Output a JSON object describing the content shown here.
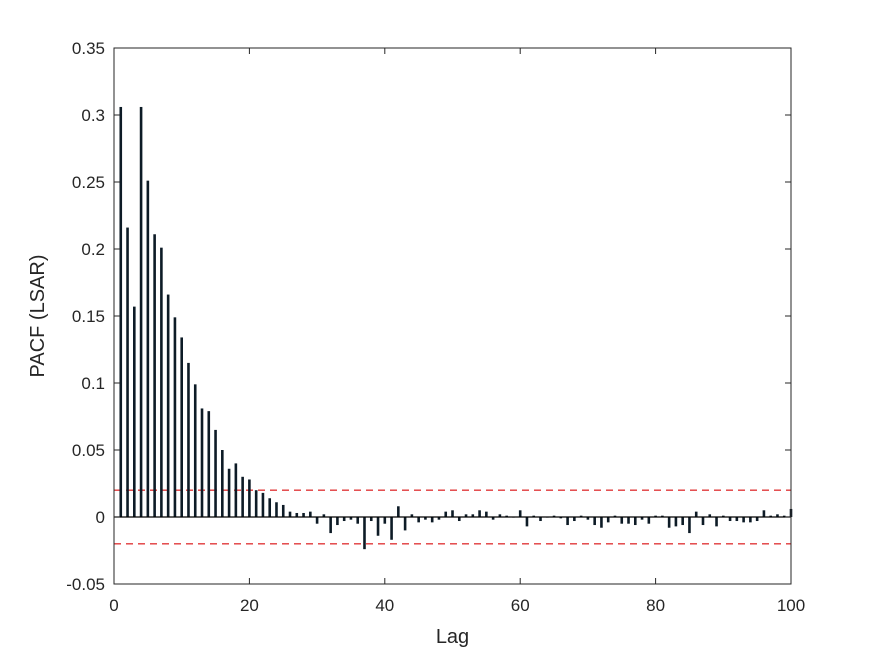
{
  "chart_data": {
    "type": "bar",
    "xlabel": "Lag",
    "ylabel": "PACF (LSAR)",
    "xlim": [
      0,
      100
    ],
    "ylim": [
      -0.05,
      0.35
    ],
    "xticks": [
      0,
      20,
      40,
      60,
      80,
      100
    ],
    "xtick_labels": [
      "0",
      "20",
      "40",
      "60",
      "80",
      "100"
    ],
    "yticks": [
      -0.05,
      0,
      0.05,
      0.1,
      0.15,
      0.2,
      0.25,
      0.3,
      0.35
    ],
    "ytick_labels": [
      "-0.05",
      "0",
      "0.05",
      "0.1",
      "0.15",
      "0.2",
      "0.25",
      "0.3",
      "0.35"
    ],
    "grid": false,
    "confidence_bounds": [
      0.02,
      -0.02
    ],
    "colors": {
      "bars": "#0d1b26",
      "bounds": "#e0383a",
      "axes": "#262626"
    },
    "lags": [
      1,
      2,
      3,
      4,
      5,
      6,
      7,
      8,
      9,
      10,
      11,
      12,
      13,
      14,
      15,
      16,
      17,
      18,
      19,
      20,
      21,
      22,
      23,
      24,
      25,
      26,
      27,
      28,
      29,
      30,
      31,
      32,
      33,
      34,
      35,
      36,
      37,
      38,
      39,
      40,
      41,
      42,
      43,
      44,
      45,
      46,
      47,
      48,
      49,
      50,
      51,
      52,
      53,
      54,
      55,
      56,
      57,
      58,
      59,
      60,
      61,
      62,
      63,
      64,
      65,
      66,
      67,
      68,
      69,
      70,
      71,
      72,
      73,
      74,
      75,
      76,
      77,
      78,
      79,
      80,
      81,
      82,
      83,
      84,
      85,
      86,
      87,
      88,
      89,
      90,
      91,
      92,
      93,
      94,
      95,
      96,
      97,
      98,
      99,
      100
    ],
    "values": [
      0.306,
      0.216,
      0.157,
      0.306,
      0.251,
      0.211,
      0.201,
      0.166,
      0.149,
      0.134,
      0.115,
      0.099,
      0.081,
      0.079,
      0.065,
      0.05,
      0.036,
      0.04,
      0.03,
      0.028,
      0.02,
      0.018,
      0.014,
      0.011,
      0.009,
      0.004,
      0.003,
      0.003,
      0.004,
      -0.005,
      0.002,
      -0.012,
      -0.006,
      -0.003,
      -0.002,
      -0.005,
      -0.024,
      -0.003,
      -0.014,
      -0.005,
      -0.017,
      0.008,
      -0.01,
      0.002,
      -0.004,
      -0.002,
      -0.004,
      -0.002,
      0.004,
      0.005,
      -0.003,
      0.002,
      0.002,
      0.005,
      0.004,
      -0.002,
      0.002,
      0.001,
      0.0,
      0.005,
      -0.007,
      0.001,
      -0.003,
      0.0,
      0.001,
      -0.001,
      -0.006,
      -0.003,
      0.001,
      -0.002,
      -0.006,
      -0.008,
      -0.004,
      0.001,
      -0.005,
      -0.005,
      -0.006,
      -0.002,
      -0.005,
      0.001,
      0.001,
      -0.008,
      -0.007,
      -0.006,
      -0.012,
      0.004,
      -0.006,
      0.002,
      -0.007,
      0.001,
      -0.003,
      -0.003,
      -0.004,
      -0.004,
      -0.003,
      0.005,
      0.001,
      0.002,
      0.001,
      0.006
    ]
  }
}
